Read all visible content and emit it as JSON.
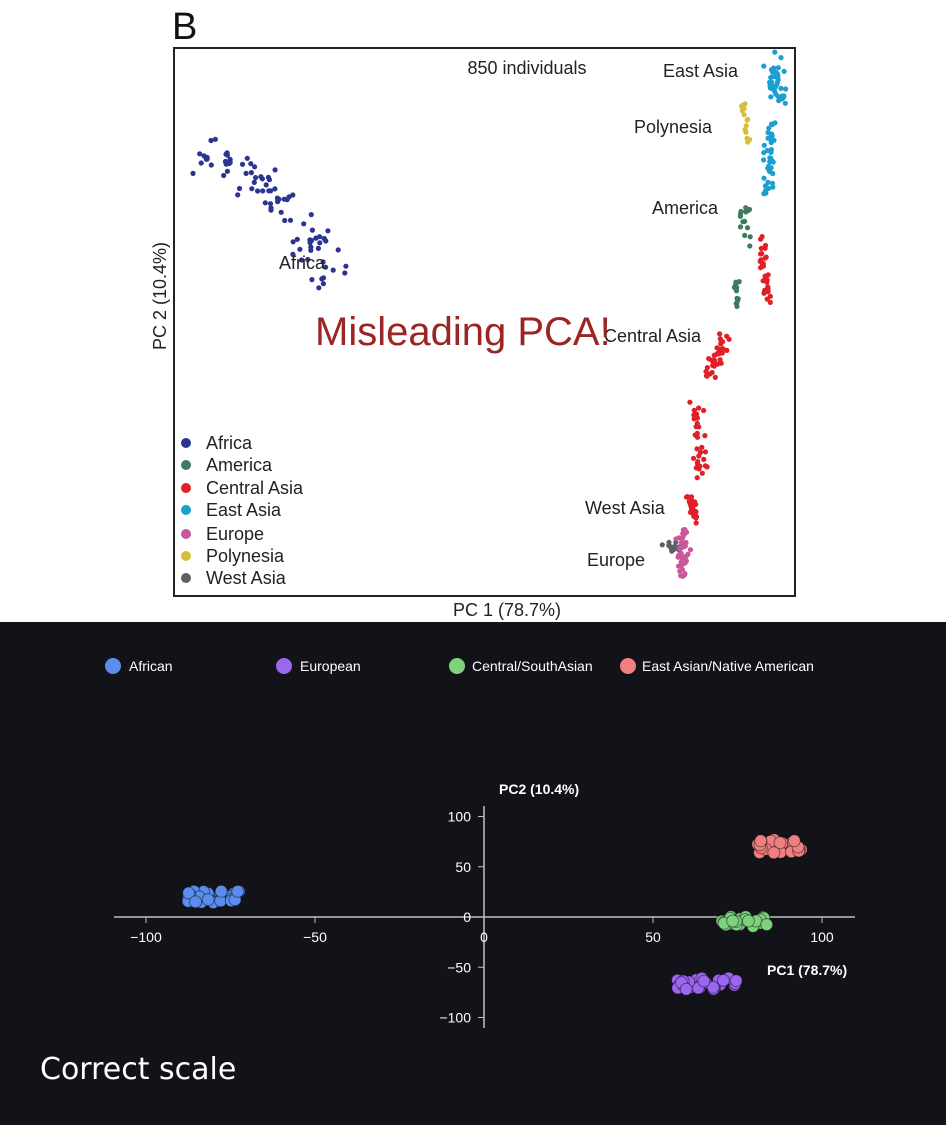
{
  "top": {
    "panel_letter": "B",
    "overlay_text": "Misleading PCA!",
    "overlay_color": "#9b2424"
  },
  "bottom": {
    "caption": "Correct scale"
  },
  "chart_data": [
    {
      "type": "scatter",
      "title": "850 individuals",
      "xlabel": "PC 1 (78.7%)",
      "ylabel": "PC 2 (10.4%)",
      "xlim": [
        0,
        1
      ],
      "ylim": [
        0,
        1
      ],
      "grid": false,
      "legend_position": "bottom-left",
      "legend": [
        {
          "name": "Africa",
          "color": "#2b3591"
        },
        {
          "name": "America",
          "color": "#3d7a5e"
        },
        {
          "name": "Central Asia",
          "color": "#e21f26"
        },
        {
          "name": "East Asia",
          "color": "#1a9fd0"
        },
        {
          "name": "Europe",
          "color": "#c8579b"
        },
        {
          "name": "Polynesia",
          "color": "#d5bf3a"
        },
        {
          "name": "West Asia",
          "color": "#5e5e66"
        }
      ],
      "annotations": [
        "East Asia",
        "Polynesia",
        "America",
        "Africa",
        "Central Asia",
        "West Asia",
        "Europe"
      ],
      "clusters": [
        {
          "name": "Africa",
          "color": "#2b3591",
          "n": 90,
          "segments": [
            [
              0.05,
              0.8,
              0.16,
              0.74,
              0.05
            ],
            [
              0.16,
              0.74,
              0.27,
              0.56,
              0.06
            ]
          ]
        },
        {
          "name": "East Asia",
          "color": "#1a9fd0",
          "n": 80,
          "segments": [
            [
              0.965,
              0.97,
              0.975,
              0.9,
              0.03
            ],
            [
              0.96,
              0.87,
              0.955,
              0.73,
              0.025
            ]
          ]
        },
        {
          "name": "Polynesia",
          "color": "#d5bf3a",
          "n": 14,
          "segments": [
            [
              0.915,
              0.9,
              0.925,
              0.82,
              0.015
            ]
          ]
        },
        {
          "name": "America",
          "color": "#3d7a5e",
          "n": 28,
          "segments": [
            [
              0.915,
              0.73,
              0.925,
              0.63,
              0.02
            ],
            [
              0.905,
              0.58,
              0.905,
              0.52,
              0.01
            ]
          ]
        },
        {
          "name": "Central Asia",
          "color": "#e21f26",
          "n": 130,
          "segments": [
            [
              0.945,
              0.66,
              0.955,
              0.54,
              0.02
            ],
            [
              0.89,
              0.48,
              0.86,
              0.4,
              0.025
            ],
            [
              0.84,
              0.36,
              0.85,
              0.22,
              0.025
            ],
            [
              0.83,
              0.18,
              0.84,
              0.14,
              0.015
            ]
          ]
        },
        {
          "name": "West Asia",
          "color": "#5e5e66",
          "n": 18,
          "segments": [
            [
              0.79,
              0.09,
              0.82,
              0.09,
              0.015
            ]
          ]
        },
        {
          "name": "Europe",
          "color": "#c8579b",
          "n": 45,
          "segments": [
            [
              0.82,
              0.12,
              0.82,
              0.04,
              0.025
            ]
          ]
        }
      ]
    },
    {
      "type": "scatter",
      "xlabel": "PC1 (78.7%)",
      "ylabel": "PC2 (10.4%)",
      "xlim": [
        -110,
        110
      ],
      "ylim": [
        -110,
        110
      ],
      "x_ticks": [
        -100,
        -50,
        0,
        50,
        100
      ],
      "y_ticks": [
        100,
        50,
        0,
        -50,
        -100
      ],
      "x_tick_labels": [
        "−100",
        "−50",
        "0",
        "50",
        "100"
      ],
      "y_tick_labels": [
        "100",
        "50",
        "0",
        "−50",
        "−100"
      ],
      "grid": false,
      "legend_position": "top",
      "series": [
        {
          "name": "African",
          "color": "#5b8def",
          "center": [
            -80,
            20
          ],
          "spread": [
            8,
            6
          ],
          "n": 30
        },
        {
          "name": "European",
          "color": "#9c66f0",
          "center": [
            66,
            -66
          ],
          "spread": [
            9,
            6
          ],
          "n": 30
        },
        {
          "name": "Central/SouthAsian",
          "color": "#7ed27e",
          "center": [
            77,
            -5
          ],
          "spread": [
            7,
            6
          ],
          "n": 30
        },
        {
          "name": "East Asian/Native American",
          "color": "#f08080",
          "center": [
            88,
            70
          ],
          "spread": [
            7,
            7
          ],
          "n": 30
        }
      ]
    }
  ]
}
